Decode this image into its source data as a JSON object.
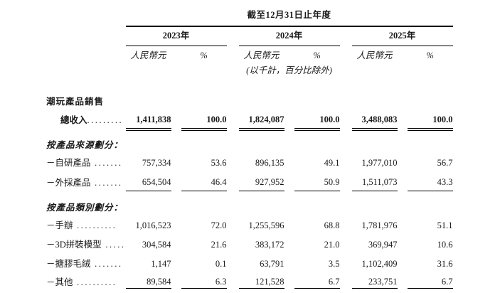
{
  "colors": {
    "background": "#ffffff",
    "text": "#1a1a1a",
    "rule": "#000000"
  },
  "table": {
    "period_header": "截至12月31日止年度",
    "note": "(以千計，百分比除外)",
    "year_groups": [
      {
        "year": "2023年",
        "unit": "人民幣元",
        "pct": "%"
      },
      {
        "year": "2024年",
        "unit": "人民幣元",
        "pct": "%"
      },
      {
        "year": "2025年",
        "unit": "人民幣元",
        "pct": "%"
      }
    ],
    "rows": [
      {
        "type": "section",
        "style": "bold",
        "first": true,
        "label": "潮玩產品銷售"
      },
      {
        "type": "data",
        "label": "總收入",
        "dots": ".........",
        "indent": true,
        "bold": true,
        "rule": "double",
        "values": [
          "1,411,838",
          "100.0",
          "1,824,087",
          "100.0",
          "3,488,083",
          "100.0"
        ]
      },
      {
        "type": "section",
        "style": "bold-italic",
        "label": "按產品來源劃分："
      },
      {
        "type": "data",
        "label": "－自研產品",
        "dots": " .......",
        "values": [
          "757,334",
          "53.6",
          "896,135",
          "49.1",
          "1,977,010",
          "56.7"
        ]
      },
      {
        "type": "data",
        "label": "－外採產品",
        "dots": " .......",
        "rule": "single",
        "values": [
          "654,504",
          "46.4",
          "927,952",
          "50.9",
          "1,511,073",
          "43.3"
        ]
      },
      {
        "type": "section",
        "style": "bold-italic",
        "label": "按產品類別劃分："
      },
      {
        "type": "data",
        "label": "－手辦",
        "dots": " ..........",
        "values": [
          "1,016,523",
          "72.0",
          "1,255,596",
          "68.8",
          "1,781,976",
          "51.1"
        ]
      },
      {
        "type": "data",
        "label": "－3D拼裝模型",
        "dots": " .....",
        "values": [
          "304,584",
          "21.6",
          "383,172",
          "21.0",
          "369,947",
          "10.6"
        ]
      },
      {
        "type": "data",
        "label": "－搪膠毛絨",
        "dots": " .......",
        "values": [
          "1,147",
          "0.1",
          "63,791",
          "3.5",
          "1,102,409",
          "31.6"
        ]
      },
      {
        "type": "data",
        "label": "－其他",
        "dots": " ..........",
        "rule": "single",
        "values": [
          "89,584",
          "6.3",
          "121,528",
          "6.7",
          "233,751",
          "6.7"
        ]
      }
    ]
  }
}
